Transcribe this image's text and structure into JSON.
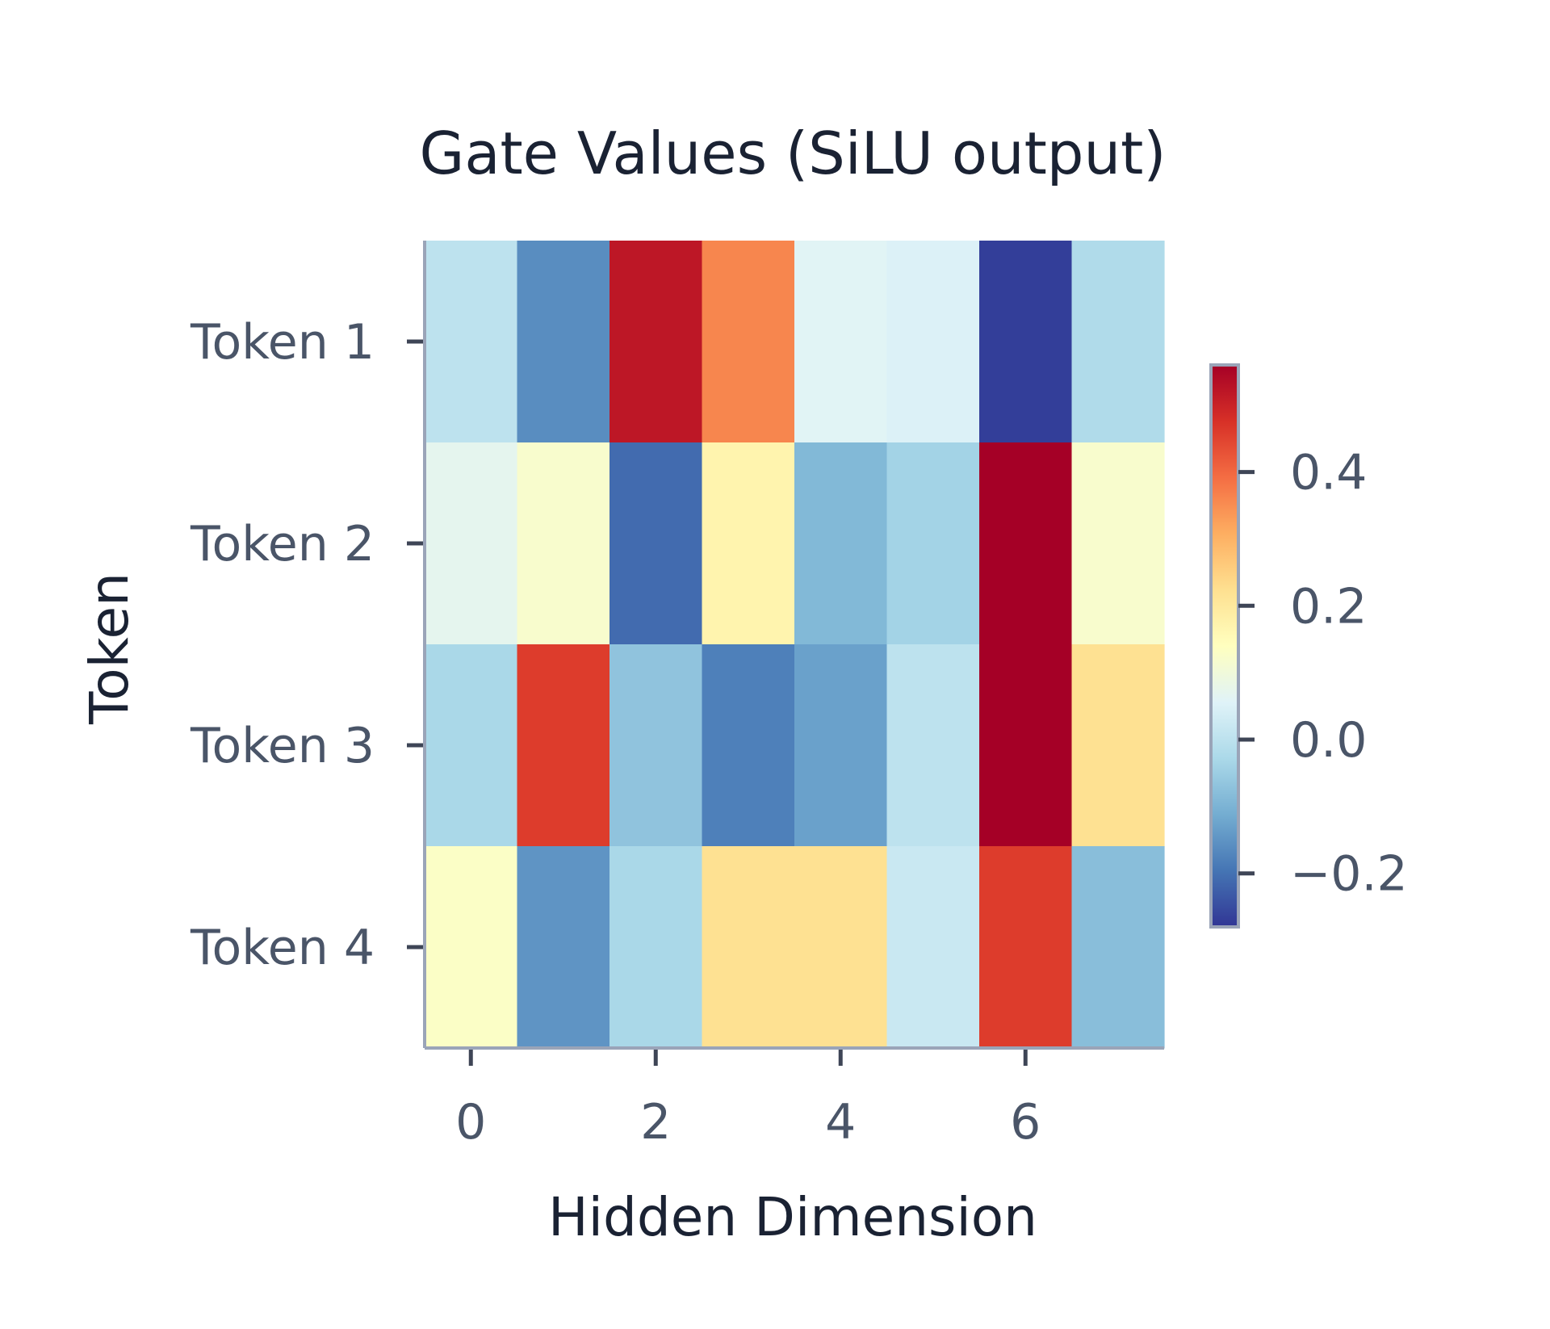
{
  "chart_data": {
    "type": "heatmap",
    "title": "Gate Values (SiLU output)",
    "xlabel": "Hidden Dimension",
    "ylabel": "Token",
    "rows": [
      "Token 1",
      "Token 2",
      "Token 3",
      "Token 4"
    ],
    "columns": [
      0,
      1,
      2,
      3,
      4,
      5,
      6,
      7
    ],
    "x_ticks": [
      "0",
      "2",
      "4",
      "6"
    ],
    "values": [
      [
        0.0,
        -0.16,
        0.52,
        0.36,
        0.06,
        0.05,
        -0.27,
        -0.02
      ],
      [
        0.07,
        0.12,
        -0.21,
        0.17,
        -0.09,
        -0.04,
        0.6,
        0.12
      ],
      [
        -0.03,
        0.46,
        -0.07,
        -0.18,
        -0.13,
        0.0,
        0.62,
        0.22
      ],
      [
        0.13,
        -0.15,
        -0.03,
        0.22,
        0.22,
        0.02,
        0.46,
        -0.08
      ]
    ],
    "colormap": "RdYlBu_r",
    "colorbar": {
      "min": -0.28,
      "max": 0.56,
      "ticks": [
        "0.4",
        "0.2",
        "0.0",
        "−0.2"
      ],
      "tick_values": [
        0.4,
        0.2,
        0.0,
        -0.2
      ]
    },
    "grid": false
  }
}
